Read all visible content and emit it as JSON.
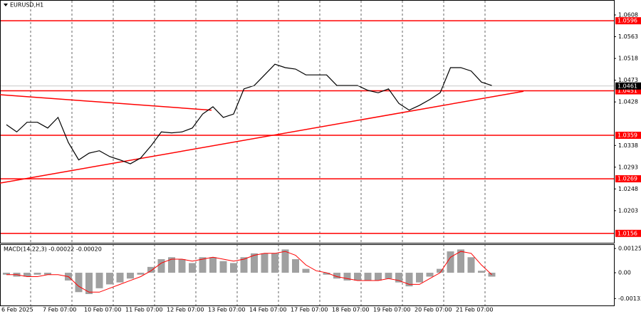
{
  "chart_data": [
    {
      "type": "line",
      "title": "EURUSD,H1",
      "categories": [
        "6 Feb 2025",
        null,
        null,
        null,
        "7 Feb 07:00",
        null,
        null,
        null,
        "10 Feb 07:00",
        null,
        null,
        null,
        "11 Feb 07:00",
        null,
        null,
        null,
        "12 Feb 07:00",
        null,
        null,
        null,
        "13 Feb 07:00",
        null,
        null,
        null,
        "14 Feb 07:00",
        null,
        null,
        null,
        "17 Feb 07:00",
        null,
        null,
        null,
        "18 Feb 07:00",
        null,
        null,
        null,
        "19 Feb 07:00",
        null,
        null,
        null,
        "20 Feb 07:00",
        null,
        null,
        null,
        "21 Feb 07:00",
        null,
        null,
        null
      ],
      "values": [
        1.0381,
        1.0366,
        1.0386,
        1.0386,
        1.0374,
        1.0396,
        1.0344,
        1.0308,
        1.0322,
        1.0327,
        1.0315,
        1.0308,
        1.03,
        1.0312,
        1.0337,
        1.0366,
        1.0364,
        1.0366,
        1.0374,
        1.0403,
        1.0418,
        1.0396,
        1.0403,
        1.0455,
        1.0462,
        1.0484,
        1.0506,
        1.0499,
        1.0496,
        1.0484,
        1.0484,
        1.0484,
        1.0462,
        1.0462,
        1.0462,
        1.0452,
        1.0447,
        1.0455,
        1.0425,
        1.0411,
        1.0421,
        1.0433,
        1.0447,
        1.0499,
        1.0499,
        1.0492,
        1.0469,
        1.0462
      ],
      "color": "#000000",
      "ylim": [
        1.0138,
        1.0636
      ],
      "yticks": [
        1.0608,
        1.0563,
        1.0518,
        1.0473,
        1.0428,
        1.0338,
        1.0293,
        1.0248,
        1.0203
      ],
      "current_price": 1.0461,
      "levels": [
        1.0596,
        1.0451,
        1.0359,
        1.0269,
        1.0156
      ],
      "level_color": "#ff0000",
      "trendlines": [
        [
          1.026,
          1.045
        ],
        [
          1.0443,
          1.0411
        ]
      ]
    },
    {
      "type": "macd",
      "title": "MACD(14,22,3) -0.00022 -0.00020",
      "series": [
        {
          "color": "#a0a0a0",
          "values": [
            -0.0001,
            -0.0002,
            -0.0002,
            -0.0001,
            -0.0001,
            0.0,
            -0.0004,
            -0.001,
            -0.0011,
            -0.0008,
            -0.0006,
            -0.0005,
            -0.0003,
            -0.0001,
            0.0003,
            0.0007,
            0.0008,
            0.0007,
            0.0005,
            0.0008,
            0.0008,
            0.0006,
            0.0005,
            0.0008,
            0.001,
            0.001,
            0.001,
            0.0012,
            0.0007,
            0.0002,
            0.0,
            -0.0001,
            -0.0003,
            -0.0004,
            -0.0004,
            -0.0004,
            -0.0004,
            -0.0003,
            -0.0005,
            -0.0007,
            -0.0005,
            -0.0002,
            0.0002,
            0.0011,
            0.0012,
            0.0008,
            0.0001,
            -0.0002
          ]
        },
        {
          "color": "#ff0000",
          "values": [
            -0.0001,
            -0.0001,
            -0.0002,
            -0.0002,
            -0.0001,
            -0.0001,
            -0.0002,
            -0.0007,
            -0.001,
            -0.001,
            -0.0008,
            -0.0006,
            -0.0004,
            -0.0002,
            0.0001,
            0.0005,
            0.0007,
            0.0007,
            0.0006,
            0.0007,
            0.0008,
            0.0007,
            0.0006,
            0.0007,
            0.0009,
            0.001,
            0.001,
            0.0011,
            0.0009,
            0.0004,
            0.0001,
            0.0,
            -0.0002,
            -0.0003,
            -0.0004,
            -0.0004,
            -0.0004,
            -0.0003,
            -0.0004,
            -0.0006,
            -0.0006,
            -0.0003,
            0.0,
            0.0008,
            0.0011,
            0.001,
            0.0004,
            -0.0001
          ]
        }
      ],
      "ylim": [
        -0.00165,
        0.00147
      ],
      "yticks": [
        0.00125,
        {
          "value": 0,
          "label": "0.00"
        },
        -0.00133
      ]
    }
  ]
}
